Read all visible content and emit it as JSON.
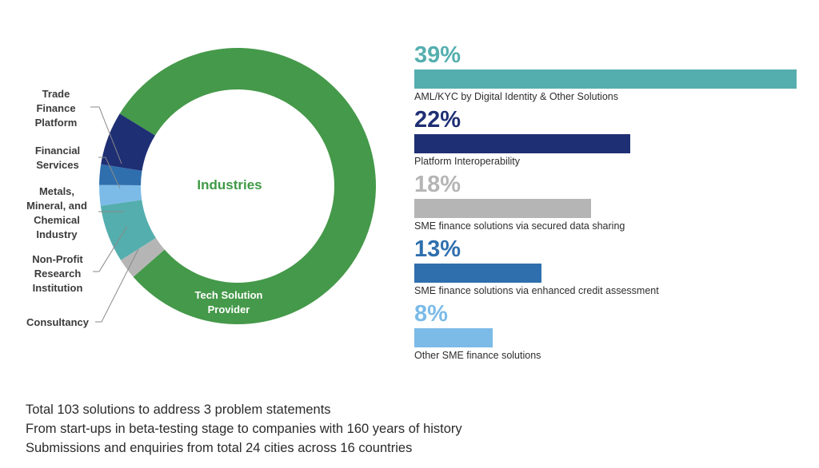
{
  "chart_data": [
    {
      "type": "donut",
      "title": "Industries",
      "slices": [
        {
          "label": "Tech Solution Provider",
          "value": 83.0,
          "color": "#45994a"
        },
        {
          "label": "Trade Finance Platform",
          "value": 2.5,
          "color": "#b5b5b5"
        },
        {
          "label": "Financial Services",
          "value": 7.0,
          "color": "#55aeae"
        },
        {
          "label": "Metals, Mineral, and Chemical Industry",
          "value": 2.5,
          "color": "#7cbbe8"
        },
        {
          "label": "Non-Profit Research Institution",
          "value": 2.5,
          "color": "#2f6fae"
        },
        {
          "label": "Consultancy",
          "value": 6.5,
          "color": "#1f2f74"
        }
      ]
    },
    {
      "type": "bar",
      "orientation": "horizontal",
      "xlim": [
        0,
        39
      ],
      "bars": [
        {
          "pct": "39%",
          "value": 39,
          "label": "AML/KYC by Digital Identity & Other Solutions",
          "color": "#55aeae"
        },
        {
          "pct": "22%",
          "value": 22,
          "label": "Platform Interoperability",
          "color": "#1f2f74"
        },
        {
          "pct": "18%",
          "value": 18,
          "label": "SME finance solutions via secured data sharing",
          "color": "#b5b5b5"
        },
        {
          "pct": "13%",
          "value": 13,
          "label": "SME finance solutions via enhanced credit assessment",
          "color": "#2f6fae"
        },
        {
          "pct": "8%",
          "value": 8,
          "label": "Other SME finance solutions",
          "color": "#7cbbe8"
        }
      ]
    }
  ],
  "labels": {
    "center": "Industries",
    "tech": "Tech Solution\nProvider",
    "trade": "Trade\nFinance\nPlatform",
    "financial": "Financial\nServices",
    "metals": "Metals,\nMineral, and\nChemical\nIndustry",
    "nonprofit": "Non-Profit\nResearch\nInstitution",
    "consultancy": "Consultancy"
  },
  "notes": [
    "Total 103 solutions to address 3 problem statements",
    "From start-ups in beta-testing stage to companies with 160 years of history",
    "Submissions and enquiries from total 24 cities across 16 countries"
  ]
}
